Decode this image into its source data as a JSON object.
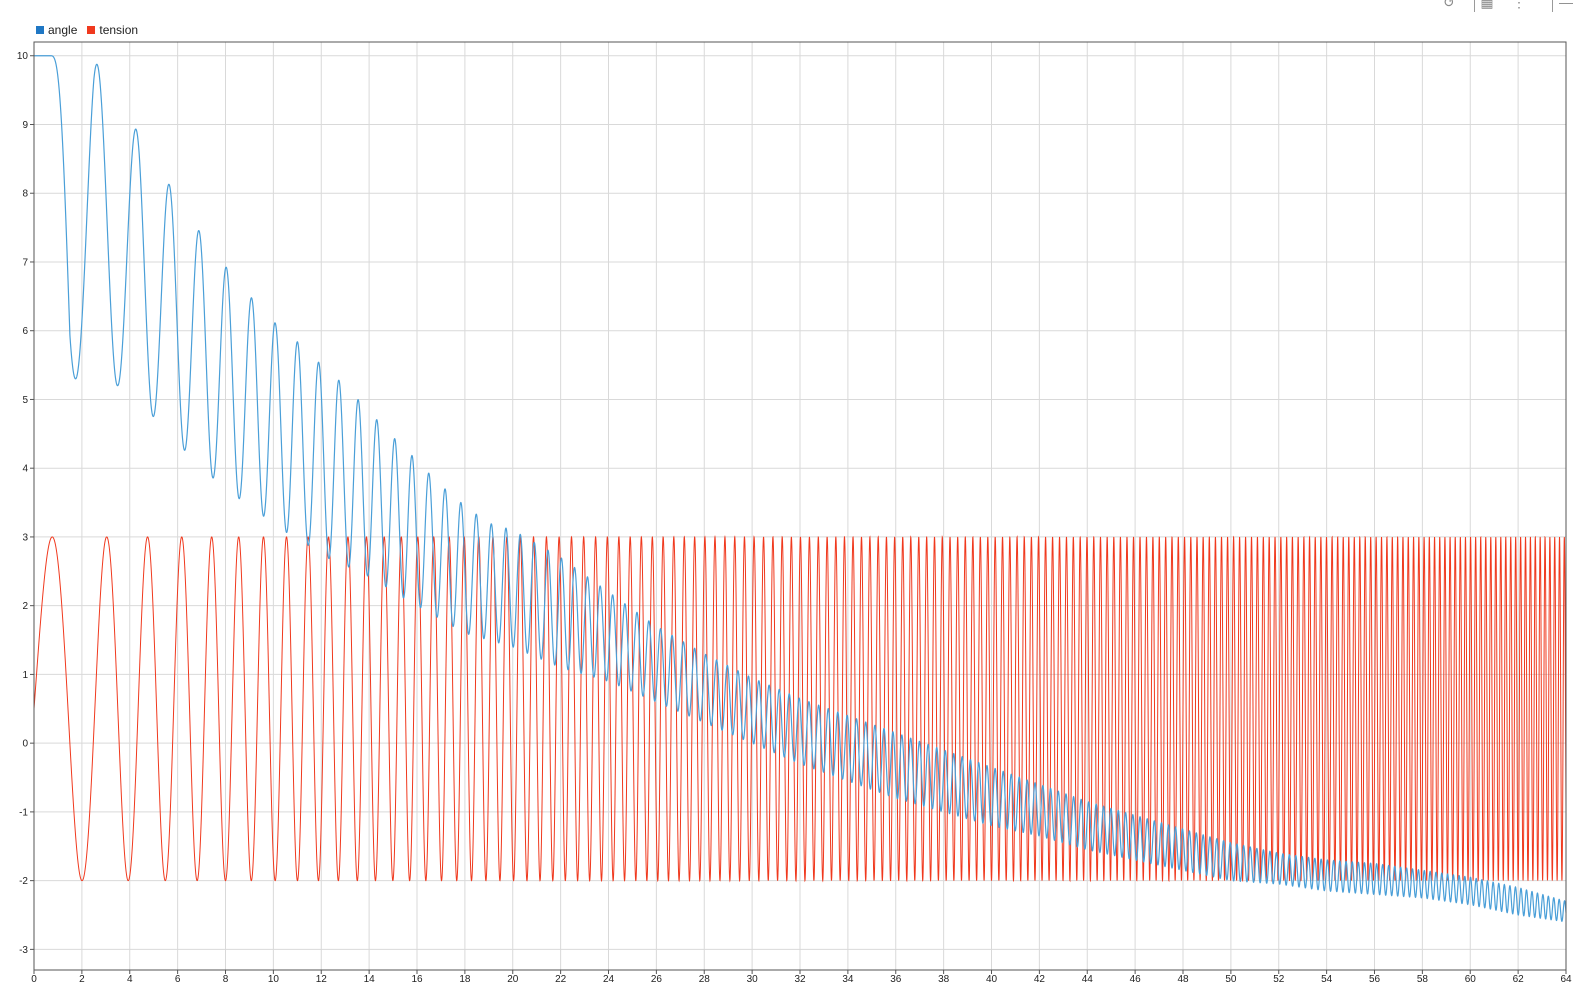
{
  "toolbar": {
    "icons": [
      "restore-icon",
      "layout-icon",
      "layout-grid-icon",
      "cursor-icon",
      "zoom-icon",
      "zoom-box-icon",
      "pan-icon",
      "zoom-reset-icon",
      "fit-icon",
      "snapshot-icon",
      "settings-icon"
    ]
  },
  "legend": {
    "items": [
      {
        "label": "angle",
        "color": "#1f77c4"
      },
      {
        "label": "tension",
        "color": "#f0391e"
      }
    ]
  },
  "chart_data": {
    "type": "line",
    "title": "",
    "xlabel": "",
    "ylabel": "",
    "xlim": [
      0,
      64
    ],
    "ylim": [
      -3.3,
      10.2
    ],
    "grid": true,
    "legend_position": "top-left",
    "x_ticks": [
      "0",
      "2",
      "4",
      "6",
      "8",
      "10",
      "12",
      "14",
      "16",
      "18",
      "20",
      "22",
      "24",
      "26",
      "28",
      "30",
      "32",
      "34",
      "36",
      "38",
      "40",
      "42",
      "44",
      "46",
      "48",
      "50",
      "52",
      "54",
      "56",
      "58",
      "60",
      "62",
      "64"
    ],
    "y_ticks": [
      "10",
      "9",
      "8",
      "7",
      "6",
      "5",
      "4",
      "3",
      "2",
      "1",
      "0",
      "-1",
      "-2",
      "-3"
    ],
    "series": [
      {
        "name": "angle",
        "color": "#4a9fd8",
        "description_points": {
          "x": [
            0,
            0.7,
            1.5,
            2.5,
            3.5,
            4.4,
            5.1,
            5.9,
            6.6,
            7.2,
            7.8,
            8.4,
            9.0,
            9.6,
            10.1,
            10.6,
            11.1,
            11.6,
            12.0,
            12.5,
            13.0,
            13.4,
            13.8,
            14.2,
            14.6,
            15.0,
            15.5,
            16.0,
            17.0,
            18.0,
            19.0,
            20.0,
            22.0,
            24.0,
            26.0,
            28.0,
            30.0,
            32.0,
            34.0,
            36.0,
            38.0,
            40.0,
            42.0,
            44.0,
            46.0,
            48.0,
            50.0,
            52.0,
            54.0,
            56.0,
            58.0,
            60.0,
            62.0,
            64.0
          ],
          "upper": [
            10,
            10,
            10,
            10,
            9.1,
            8.9,
            8.4,
            8.0,
            7.6,
            7.3,
            7.0,
            6.8,
            6.5,
            6.35,
            6.1,
            6.0,
            5.8,
            5.65,
            5.5,
            5.35,
            5.2,
            5.05,
            4.9,
            4.75,
            4.6,
            4.45,
            4.3,
            4.1,
            3.75,
            3.45,
            3.2,
            3.1,
            2.7,
            2.2,
            1.7,
            1.3,
            0.95,
            0.65,
            0.4,
            0.15,
            -0.1,
            -0.35,
            -0.6,
            -0.85,
            -1.05,
            -1.25,
            -1.45,
            -1.6,
            -1.7,
            -1.75,
            -1.85,
            -1.95,
            -2.1,
            -2.3
          ],
          "lower": [
            10,
            10,
            5.3,
            5.3,
            5.2,
            5.0,
            4.7,
            4.4,
            4.15,
            3.95,
            3.75,
            3.6,
            3.45,
            3.3,
            3.2,
            3.05,
            2.95,
            2.85,
            2.75,
            2.65,
            2.6,
            2.5,
            2.45,
            2.4,
            2.3,
            2.2,
            2.1,
            2.0,
            1.8,
            1.6,
            1.5,
            1.4,
            1.1,
            0.9,
            0.6,
            0.3,
            0.0,
            -0.3,
            -0.55,
            -0.8,
            -1.0,
            -1.2,
            -1.35,
            -1.55,
            -1.7,
            -1.85,
            -2.0,
            -2.05,
            -2.15,
            -2.2,
            -2.25,
            -2.35,
            -2.5,
            -2.6
          ]
        }
      },
      {
        "name": "tension",
        "color": "#f0391e",
        "min": -2,
        "max": 3,
        "start_value": 0.5,
        "frequency_sweep_hz": [
          0.3,
          5.0
        ]
      }
    ]
  }
}
